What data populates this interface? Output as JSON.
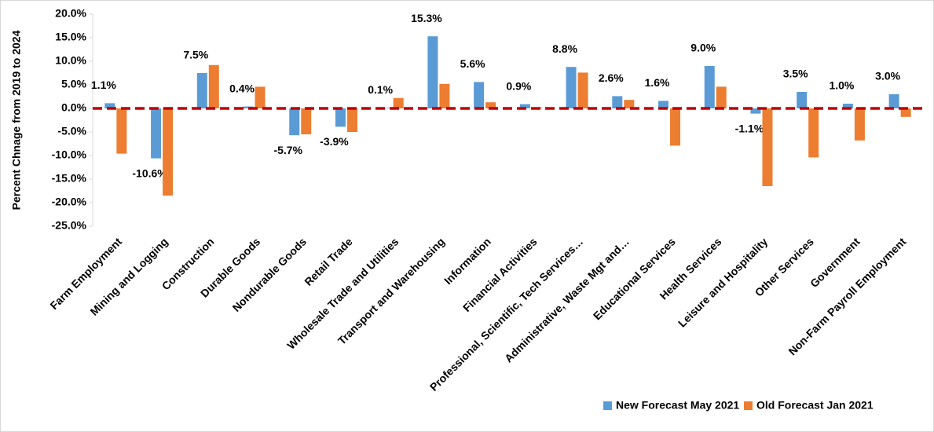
{
  "chart_data": {
    "type": "bar",
    "y_label": "Percent Chnage from 2019 to 2024",
    "categories": [
      "Farm Employment",
      "Mining and Logging",
      "Construction",
      "Durable Goods",
      "Nondurable Goods",
      "Retail Trade",
      "Wholesale Trade and Utilities",
      "Transport and Warehousing",
      "Information",
      "Financial Activities",
      "Professional, Scientific, Tech Services…",
      "Administrative, Waste Mgt and…",
      "Educational Services",
      "Health Services",
      "Leisure and Hospitality",
      "Other Services",
      "Government",
      "Non-Farm Payroll Employment"
    ],
    "series": [
      {
        "name": "New Forecast May 2021",
        "color": "#5b9bd5",
        "values": [
          1.1,
          -10.6,
          7.5,
          0.4,
          -5.7,
          -3.9,
          0.1,
          15.3,
          5.6,
          0.9,
          8.8,
          2.6,
          1.6,
          9.0,
          -1.1,
          3.5,
          1.0,
          3.0
        ],
        "value_labels": [
          "1.1%",
          "-10.6%",
          "7.5%",
          "0.4%",
          "-5.7%",
          "-3.9%",
          "0.1%",
          "15.3%",
          "5.6%",
          "0.9%",
          "8.8%",
          "2.6%",
          "1.6%",
          "9.0%",
          "-1.1%",
          "3.5%",
          "1.0%",
          "3.0%"
        ]
      },
      {
        "name": "Old Forecast Jan 2021",
        "color": "#ed7d31",
        "values": [
          -9.6,
          -18.5,
          9.2,
          4.6,
          -5.5,
          -5.0,
          2.2,
          5.2,
          1.3,
          0.2,
          7.6,
          1.8,
          -7.9,
          4.6,
          -16.5,
          -10.4,
          -6.8,
          -1.8
        ]
      }
    ],
    "ylim": [
      -25,
      20
    ],
    "yticks": [
      {
        "value": -25,
        "label": "-25.0%"
      },
      {
        "value": -20,
        "label": "-20.0%"
      },
      {
        "value": -15,
        "label": "-15.0%"
      },
      {
        "value": -10,
        "label": "-10.0%"
      },
      {
        "value": -5,
        "label": "-5.0%"
      },
      {
        "value": 0,
        "label": "0.0%"
      },
      {
        "value": 5,
        "label": "5.0%"
      },
      {
        "value": 10,
        "label": "10.0%"
      },
      {
        "value": 15,
        "label": "15.0%"
      },
      {
        "value": 20,
        "label": "20.0%"
      }
    ],
    "zero_line_color": "#c00000",
    "legend": "bottom-right"
  }
}
